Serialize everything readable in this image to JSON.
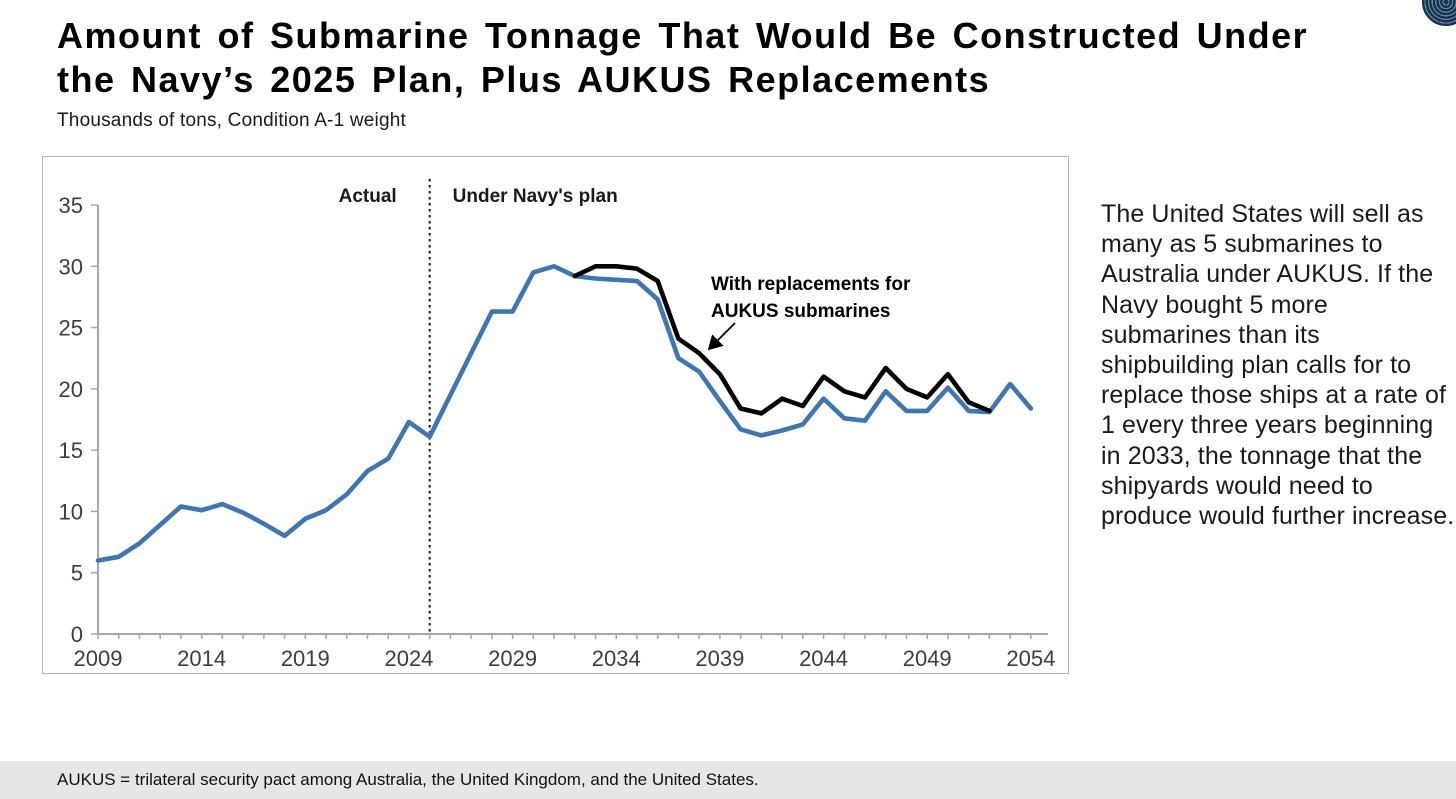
{
  "header": {
    "title_line1": "Amount of Submarine Tonnage That Would Be Constructed Under",
    "title_line2": "the Navy’s 2025 Plan, Plus AUKUS Replacements",
    "subtitle": "Thousands of tons, Condition A-1 weight"
  },
  "chart": {
    "region_label_left": "Actual",
    "region_label_right": "Under Navy's plan",
    "annotation_line1": "With replacements for",
    "annotation_line2": "AUKUS submarines",
    "divider_year": 2025
  },
  "chart_data": {
    "type": "line",
    "title": "Amount of Submarine Tonnage That Would Be Constructed Under the Navy’s 2025 Plan, Plus AUKUS Replacements",
    "ylabel": "Thousands of tons, Condition A-1 weight",
    "xlabel": "",
    "ylim": [
      0,
      35
    ],
    "yticks": [
      0,
      5,
      10,
      15,
      20,
      25,
      30,
      35
    ],
    "xticks": [
      2009,
      2014,
      2019,
      2024,
      2029,
      2034,
      2039,
      2044,
      2049,
      2054
    ],
    "grid": false,
    "divider": {
      "x": 2025,
      "style": "dotted",
      "label_left": "Actual",
      "label_right": "Under Navy's plan"
    },
    "series": [
      {
        "name": "Under Navy's plan",
        "color": "#3E76B5",
        "x": [
          2009,
          2010,
          2011,
          2012,
          2013,
          2014,
          2015,
          2016,
          2017,
          2018,
          2019,
          2020,
          2021,
          2022,
          2023,
          2024,
          2025,
          2026,
          2027,
          2028,
          2029,
          2030,
          2031,
          2032,
          2033,
          2034,
          2035,
          2036,
          2037,
          2038,
          2039,
          2040,
          2041,
          2042,
          2043,
          2044,
          2045,
          2046,
          2047,
          2048,
          2049,
          2050,
          2051,
          2052,
          2053,
          2054
        ],
        "values": [
          6.0,
          6.3,
          7.4,
          8.9,
          10.4,
          10.1,
          10.6,
          9.9,
          9.0,
          8.0,
          9.4,
          10.1,
          11.4,
          13.3,
          14.3,
          17.3,
          16.1,
          19.5,
          22.9,
          26.3,
          26.3,
          29.5,
          30.0,
          29.2,
          29.0,
          28.9,
          28.8,
          27.3,
          22.5,
          21.4,
          19.0,
          16.7,
          16.2,
          16.6,
          17.1,
          19.2,
          17.6,
          17.4,
          19.8,
          18.2,
          18.2,
          20.1,
          18.2,
          18.1,
          20.4,
          18.4
        ]
      },
      {
        "name": "With replacements for AUKUS submarines",
        "color": "#000000",
        "x": [
          2032,
          2033,
          2034,
          2035,
          2036,
          2037,
          2038,
          2039,
          2040,
          2041,
          2042,
          2043,
          2044,
          2045,
          2046,
          2047,
          2048,
          2049,
          2050,
          2051,
          2052
        ],
        "values": [
          29.2,
          30.0,
          30.0,
          29.8,
          28.8,
          24.1,
          22.9,
          21.2,
          18.4,
          18.0,
          19.2,
          18.6,
          21.0,
          19.8,
          19.3,
          21.7,
          20.0,
          19.3,
          21.2,
          18.9,
          18.2
        ]
      }
    ]
  },
  "side_text": {
    "paragraph": "The United States will sell as many as 5 submarines to Australia under AUKUS. If the Navy bought 5 more submarines than its shipbuilding plan calls for to replace those ships at a rate of 1 every three years beginning in 2033, the tonnage that the shipyards would need to produce would further increase."
  },
  "footer": {
    "note": "AUKUS = trilateral security pact among Australia, the United Kingdom, and the United States."
  },
  "colors": {
    "navy_plan_line": "#3E76B5",
    "aukus_line": "#000000",
    "axis": "#a6a6a6",
    "tick_label": "#3d3d3d",
    "footer_bg": "#e6e6e6",
    "logo_navy": "#16324f"
  }
}
